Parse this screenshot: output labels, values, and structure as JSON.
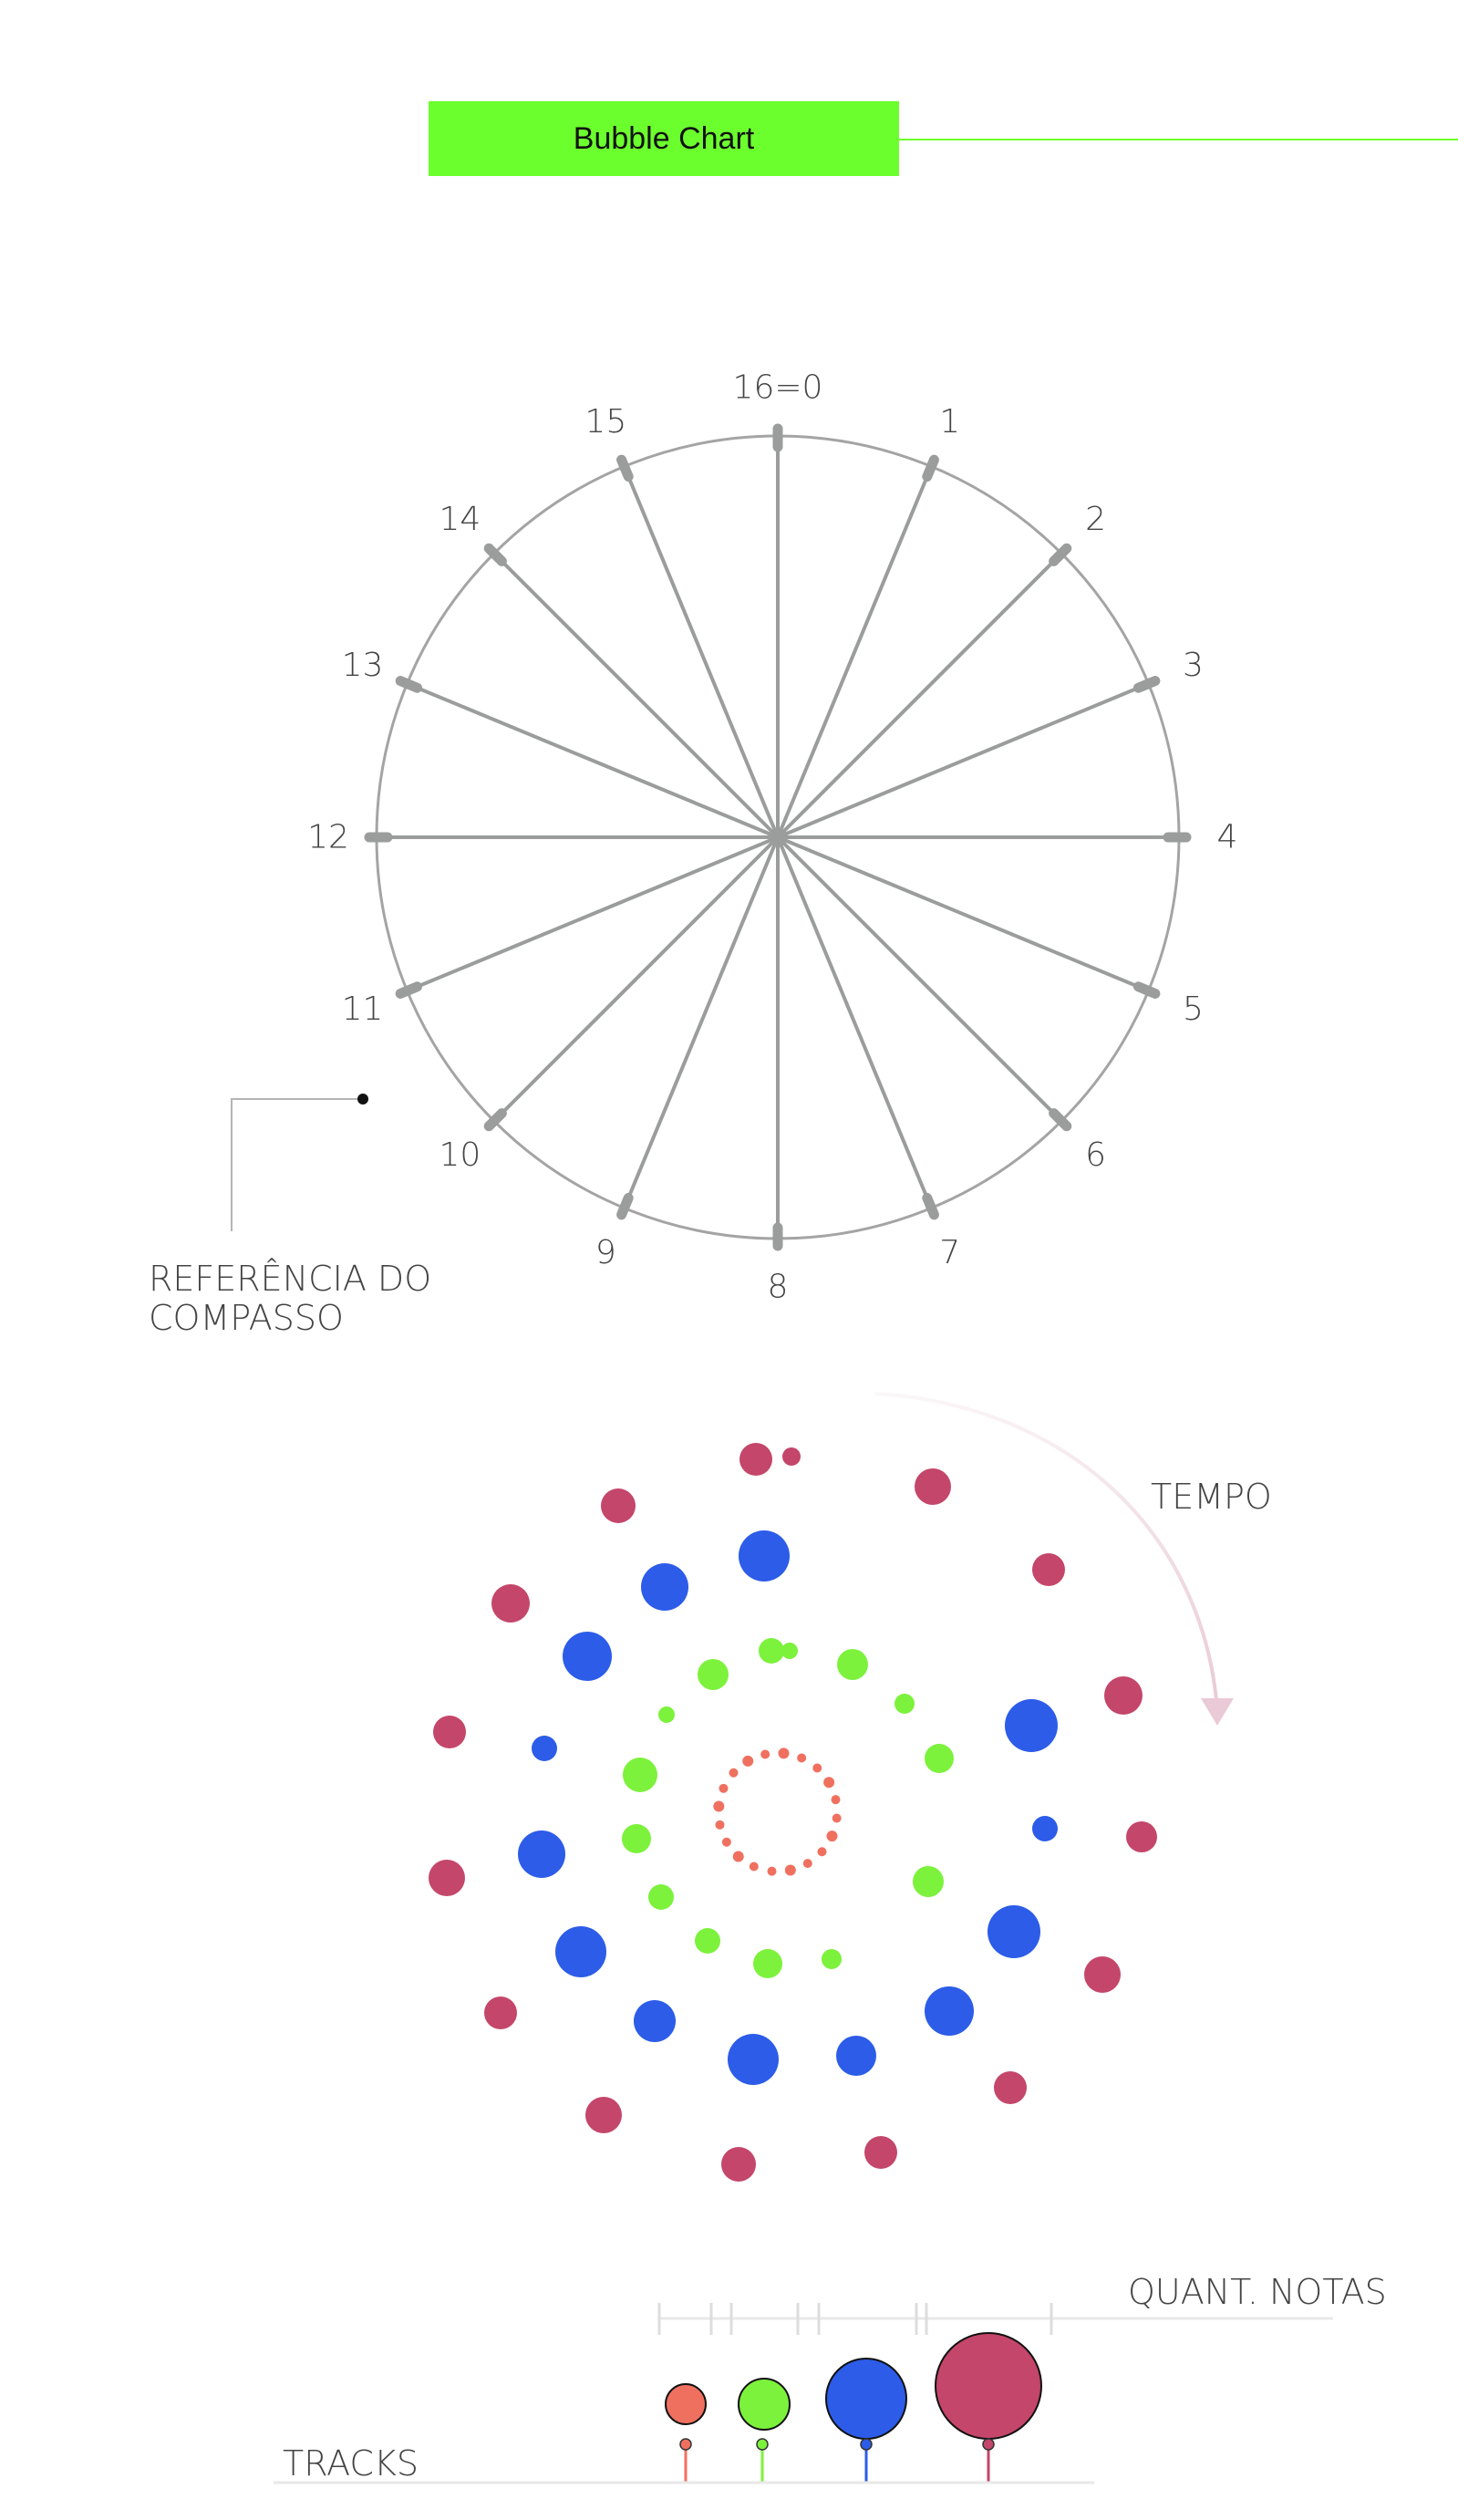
{
  "header": {
    "title": "Bubble Chart"
  },
  "compass": {
    "labels": [
      "16=0",
      "1",
      "2",
      "3",
      "4",
      "5",
      "6",
      "7",
      "8",
      "9",
      "10",
      "11",
      "12",
      "13",
      "14",
      "15"
    ],
    "reference_label_lines": [
      "REFERÊNCIA DO",
      "COMPASSO"
    ]
  },
  "bubble_field": {
    "tempo_label": "TEMPO",
    "tracks": [
      {
        "color": "#f07060",
        "ring": 1
      },
      {
        "color": "#7cf23c",
        "ring": 2
      },
      {
        "color": "#2c5ce8",
        "ring": 3
      },
      {
        "color": "#c4466a",
        "ring": 4
      }
    ]
  },
  "legend": {
    "quant_label": "QUANT. NOTAS",
    "tracks_label": "TRACKS",
    "items": [
      {
        "color": "#f07060",
        "size": 1
      },
      {
        "color": "#7cf23c",
        "size": 2
      },
      {
        "color": "#2c5ce8",
        "size": 3
      },
      {
        "color": "#c4466a",
        "size": 4
      }
    ]
  }
}
